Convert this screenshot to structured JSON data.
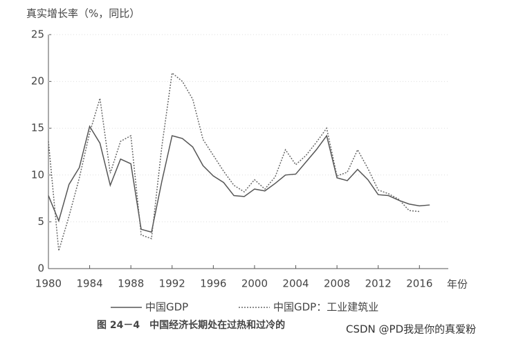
{
  "chart_data": {
    "type": "line",
    "title": "真实增长率（%，同比）",
    "x_label": "年份",
    "caption": "图 24－4　中国经济长期处在过热和过冷的",
    "watermark": "CSDN @PD我是你的真爱粉",
    "x": [
      1980,
      1981,
      1982,
      1983,
      1984,
      1985,
      1986,
      1987,
      1988,
      1989,
      1990,
      1991,
      1992,
      1993,
      1994,
      1995,
      1996,
      1997,
      1998,
      1999,
      2000,
      2001,
      2002,
      2003,
      2004,
      2005,
      2006,
      2007,
      2008,
      2009,
      2010,
      2011,
      2012,
      2013,
      2014,
      2015,
      2016,
      2017
    ],
    "series": [
      {
        "name": "中国GDP",
        "color": "#555555",
        "dash": "solid",
        "values": [
          7.8,
          5.1,
          9.0,
          10.8,
          15.2,
          13.4,
          8.9,
          11.7,
          11.2,
          4.2,
          3.9,
          9.3,
          14.2,
          13.9,
          13.0,
          11.0,
          9.9,
          9.2,
          7.8,
          7.7,
          8.5,
          8.3,
          9.1,
          10.0,
          10.1,
          11.4,
          12.7,
          14.2,
          9.7,
          9.4,
          10.6,
          9.5,
          7.9,
          7.8,
          7.3,
          6.9,
          6.7,
          6.8
        ]
      },
      {
        "name": "中国GDP：工业建筑业",
        "color": "#666666",
        "dash": "dotted",
        "values": [
          13.6,
          1.9,
          5.6,
          9.7,
          14.5,
          18.2,
          10.2,
          13.6,
          14.2,
          3.6,
          3.2,
          13.0,
          20.9,
          20.0,
          18.1,
          13.8,
          12.1,
          10.4,
          8.9,
          8.2,
          9.5,
          8.5,
          9.8,
          12.7,
          11.1,
          12.1,
          13.5,
          15.0,
          9.9,
          10.3,
          12.7,
          10.7,
          8.4,
          8.0,
          7.4,
          6.2,
          6.1,
          null
        ]
      }
    ],
    "xlim": [
      1980,
      2018.8
    ],
    "xticks": [
      1980,
      1984,
      1988,
      1992,
      1996,
      2000,
      2004,
      2008,
      2012,
      2016
    ],
    "ylim": [
      0,
      25
    ],
    "yticks": [
      0,
      5,
      10,
      15,
      20,
      25
    ],
    "grid": true
  }
}
